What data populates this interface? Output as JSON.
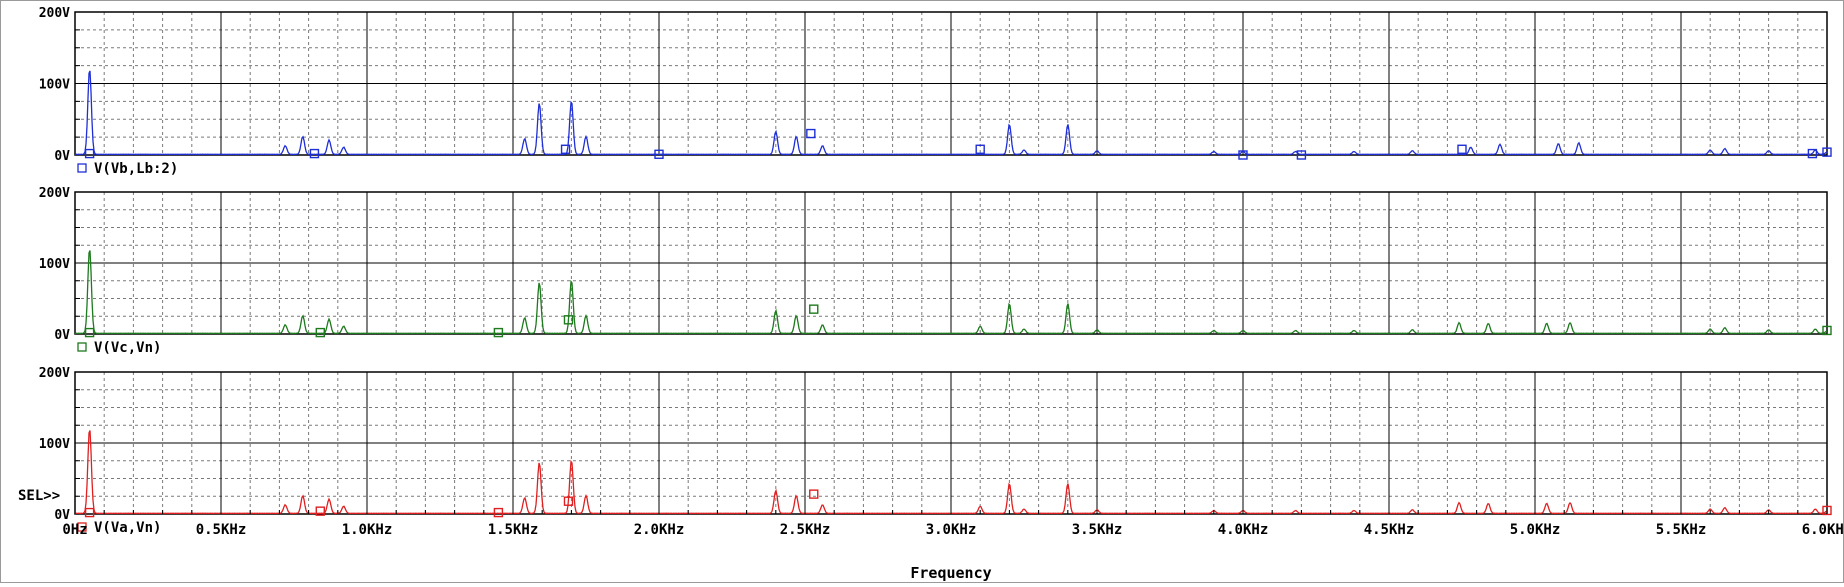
{
  "chart_data": {
    "type": "line",
    "xlabel": "Frequency",
    "x_range_hz": [
      0,
      6000
    ],
    "x_ticks": [
      "0Hz",
      "0.5KHz",
      "1.0KHz",
      "1.5KHz",
      "2.0KHz",
      "2.5KHz",
      "3.0KHz",
      "3.5KHz",
      "4.0KHz",
      "4.5KHz",
      "5.0KHz",
      "5.5KHz",
      "6.0KHz"
    ],
    "y_ticks": [
      "0V",
      "100V",
      "200V"
    ],
    "ylim_v": [
      0,
      200
    ],
    "grid": true,
    "sel_marker": "SEL>>",
    "plots": [
      {
        "name": "V(Vb,Lb:2)",
        "color": "#1f2fd6",
        "peaks": [
          [
            50,
            120
          ],
          [
            720,
            12
          ],
          [
            780,
            25
          ],
          [
            870,
            20
          ],
          [
            920,
            10
          ],
          [
            1540,
            22
          ],
          [
            1590,
            72
          ],
          [
            1700,
            75
          ],
          [
            1750,
            25
          ],
          [
            2400,
            32
          ],
          [
            2470,
            25
          ],
          [
            2560,
            12
          ],
          [
            3200,
            42
          ],
          [
            3250,
            6
          ],
          [
            3400,
            42
          ],
          [
            3500,
            5
          ],
          [
            3900,
            4
          ],
          [
            4000,
            4
          ],
          [
            4180,
            4
          ],
          [
            4380,
            4
          ],
          [
            4580,
            5
          ],
          [
            4780,
            10
          ],
          [
            4880,
            14
          ],
          [
            5080,
            15
          ],
          [
            5150,
            16
          ],
          [
            5600,
            6
          ],
          [
            5650,
            8
          ],
          [
            5800,
            5
          ],
          [
            5960,
            6
          ],
          [
            6000,
            3
          ]
        ],
        "markers": [
          [
            50,
            2
          ],
          [
            820,
            2
          ],
          [
            1680,
            8
          ],
          [
            2000,
            1
          ],
          [
            2520,
            30
          ],
          [
            3100,
            8
          ],
          [
            4000,
            0
          ],
          [
            4200,
            0
          ],
          [
            4750,
            8
          ],
          [
            5950,
            2
          ],
          [
            6000,
            4
          ]
        ]
      },
      {
        "name": "V(Vc,Vn)",
        "color": "#1d7a1d",
        "peaks": [
          [
            50,
            120
          ],
          [
            720,
            12
          ],
          [
            780,
            25
          ],
          [
            870,
            20
          ],
          [
            920,
            10
          ],
          [
            1540,
            22
          ],
          [
            1590,
            72
          ],
          [
            1700,
            75
          ],
          [
            1750,
            25
          ],
          [
            2400,
            32
          ],
          [
            2470,
            25
          ],
          [
            2560,
            12
          ],
          [
            3100,
            10
          ],
          [
            3200,
            42
          ],
          [
            3250,
            6
          ],
          [
            3400,
            42
          ],
          [
            3500,
            5
          ],
          [
            3900,
            4
          ],
          [
            4000,
            4
          ],
          [
            4180,
            4
          ],
          [
            4380,
            4
          ],
          [
            4580,
            5
          ],
          [
            4740,
            15
          ],
          [
            4840,
            14
          ],
          [
            5040,
            14
          ],
          [
            5120,
            15
          ],
          [
            5600,
            6
          ],
          [
            5650,
            8
          ],
          [
            5800,
            5
          ],
          [
            5960,
            6
          ],
          [
            6000,
            3
          ]
        ],
        "markers": [
          [
            50,
            2
          ],
          [
            840,
            2
          ],
          [
            1450,
            2
          ],
          [
            1690,
            20
          ],
          [
            2530,
            35
          ],
          [
            6000,
            5
          ]
        ]
      },
      {
        "name": "V(Va,Vn)",
        "color": "#e02020",
        "peaks": [
          [
            50,
            120
          ],
          [
            720,
            12
          ],
          [
            780,
            25
          ],
          [
            870,
            20
          ],
          [
            920,
            10
          ],
          [
            1540,
            22
          ],
          [
            1590,
            72
          ],
          [
            1700,
            75
          ],
          [
            1750,
            25
          ],
          [
            2400,
            32
          ],
          [
            2470,
            25
          ],
          [
            2560,
            12
          ],
          [
            3100,
            10
          ],
          [
            3200,
            42
          ],
          [
            3250,
            6
          ],
          [
            3400,
            42
          ],
          [
            3500,
            5
          ],
          [
            3900,
            4
          ],
          [
            4000,
            4
          ],
          [
            4180,
            4
          ],
          [
            4380,
            4
          ],
          [
            4580,
            5
          ],
          [
            4740,
            15
          ],
          [
            4840,
            14
          ],
          [
            5040,
            14
          ],
          [
            5120,
            15
          ],
          [
            5600,
            6
          ],
          [
            5650,
            8
          ],
          [
            5800,
            5
          ],
          [
            5960,
            6
          ],
          [
            6000,
            3
          ]
        ],
        "markers": [
          [
            50,
            2
          ],
          [
            840,
            4
          ],
          [
            1450,
            2
          ],
          [
            1690,
            18
          ],
          [
            2530,
            28
          ],
          [
            6000,
            5
          ]
        ]
      }
    ]
  }
}
